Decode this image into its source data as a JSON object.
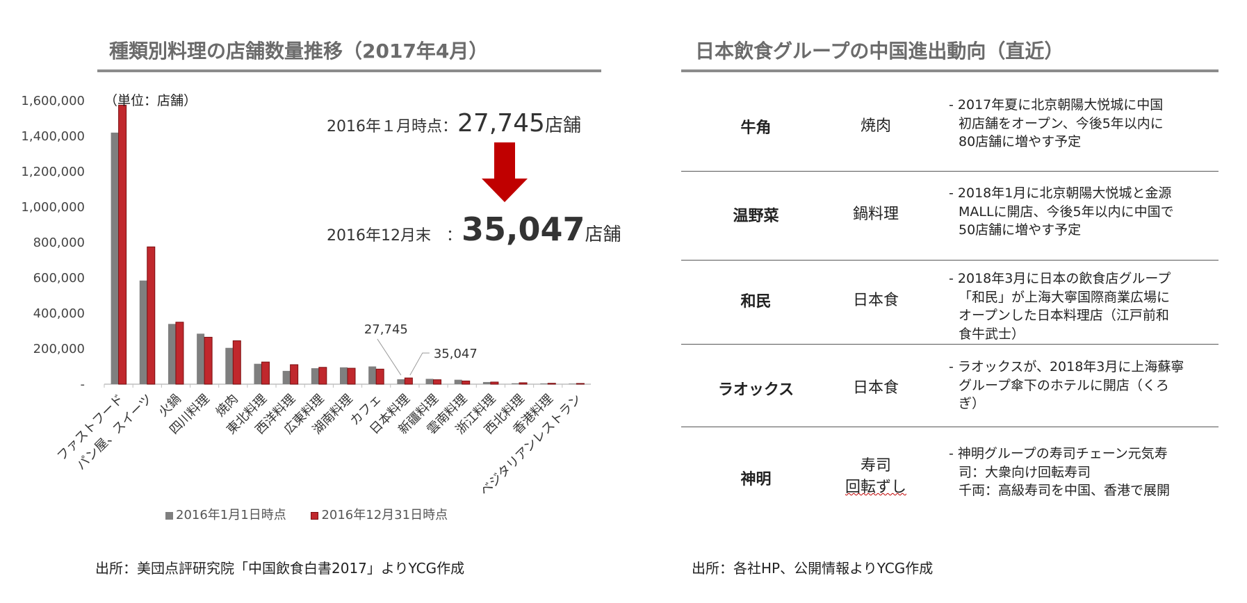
{
  "left": {
    "title": "種類別料理の店舗数量推移（2017年4月）",
    "unit_label": "（単位：店舗）",
    "kpi1": {
      "label": "2016年１月時点：",
      "value": "27,745",
      "unit": "店舗"
    },
    "kpi2": {
      "label": "2016年12月末　：",
      "value": "35,047",
      "unit": "店舗"
    },
    "source": "出所：美団点評研究院「中国飲食白書2017」よりYCG作成"
  },
  "right": {
    "title": "日本飲食グループの中国進出動向（直近）",
    "rows": [
      {
        "brand": "牛角",
        "cuisine": [
          "焼肉"
        ],
        "desc": [
          "- 2017年夏に北京朝陽大悦城に中国",
          "初店舗をオープン、今後5年以内に",
          "80店舗に増やす予定"
        ]
      },
      {
        "brand": "温野菜",
        "cuisine": [
          "鍋料理"
        ],
        "desc": [
          "- 2018年1月に北京朝陽大悦城と金源",
          "MALLに開店、今後5年以内に中国で",
          "50店舗に増やす予定"
        ]
      },
      {
        "brand": "和民",
        "cuisine": [
          "日本食"
        ],
        "desc": [
          "- 2018年3月に日本の飲食店グループ",
          "「和民」が上海大寧国際商業広場に",
          "オープンした日本料理店（江戸前和",
          "食牛武士）"
        ]
      },
      {
        "brand": "ラオックス",
        "cuisine": [
          "日本食"
        ],
        "desc": [
          "- ラオックスが、2018年3月に上海蘇寧",
          "グループ傘下のホテルに開店（くろ",
          "ぎ）"
        ]
      },
      {
        "brand": "神明",
        "cuisine": [
          "寿司",
          "回転ずし"
        ],
        "desc": [
          "- 神明グループの寿司チェーン元気寿",
          "司：大衆向け回転寿司",
          "千両：高級寿司を中国、香港で展開"
        ]
      }
    ],
    "source": "出所：各社HP、公開情報よりYCG作成"
  },
  "colors": {
    "gray": "#7f7f7f",
    "red": "#c0282d",
    "arrow": "#c00000"
  },
  "chart_data": {
    "type": "bar",
    "categories": [
      "ファストフード",
      "パン屋、スイーツ",
      "火鍋",
      "四川料理",
      "焼肉",
      "東北料理",
      "西洋料理",
      "広東料理",
      "湖南料理",
      "カフェ",
      "日本料理",
      "新疆料理",
      "雲南料理",
      "浙江料理",
      "西北料理",
      "香港料理",
      "ベジタリアンレストラン"
    ],
    "series": [
      {
        "name": "2016年1月1日時点",
        "color": "#7f7f7f",
        "values": [
          1420000,
          585000,
          340000,
          285000,
          205000,
          115000,
          75000,
          90000,
          95000,
          100000,
          27745,
          30000,
          25000,
          12000,
          5000,
          4000,
          3000
        ]
      },
      {
        "name": "2016年12月31日時点",
        "color": "#c0282d",
        "values": [
          1575000,
          775000,
          350000,
          265000,
          245000,
          125000,
          110000,
          95000,
          90000,
          85000,
          35047,
          25000,
          18000,
          12000,
          8000,
          5000,
          4000
        ]
      }
    ],
    "ylim": [
      0,
      1600000
    ],
    "yticks": [
      0,
      200000,
      400000,
      600000,
      800000,
      1000000,
      1200000,
      1400000,
      1600000
    ],
    "ytick_labels": [
      "-",
      "200,000",
      "400,000",
      "600,000",
      "800,000",
      "1,000,000",
      "1,200,000",
      "1,400,000",
      "1,600,000"
    ],
    "annotations": [
      {
        "category": "日本料理",
        "series": 0,
        "text": "27,745"
      },
      {
        "category": "日本料理",
        "series": 1,
        "text": "35,047"
      }
    ],
    "legend": "bottom",
    "grid": false
  }
}
